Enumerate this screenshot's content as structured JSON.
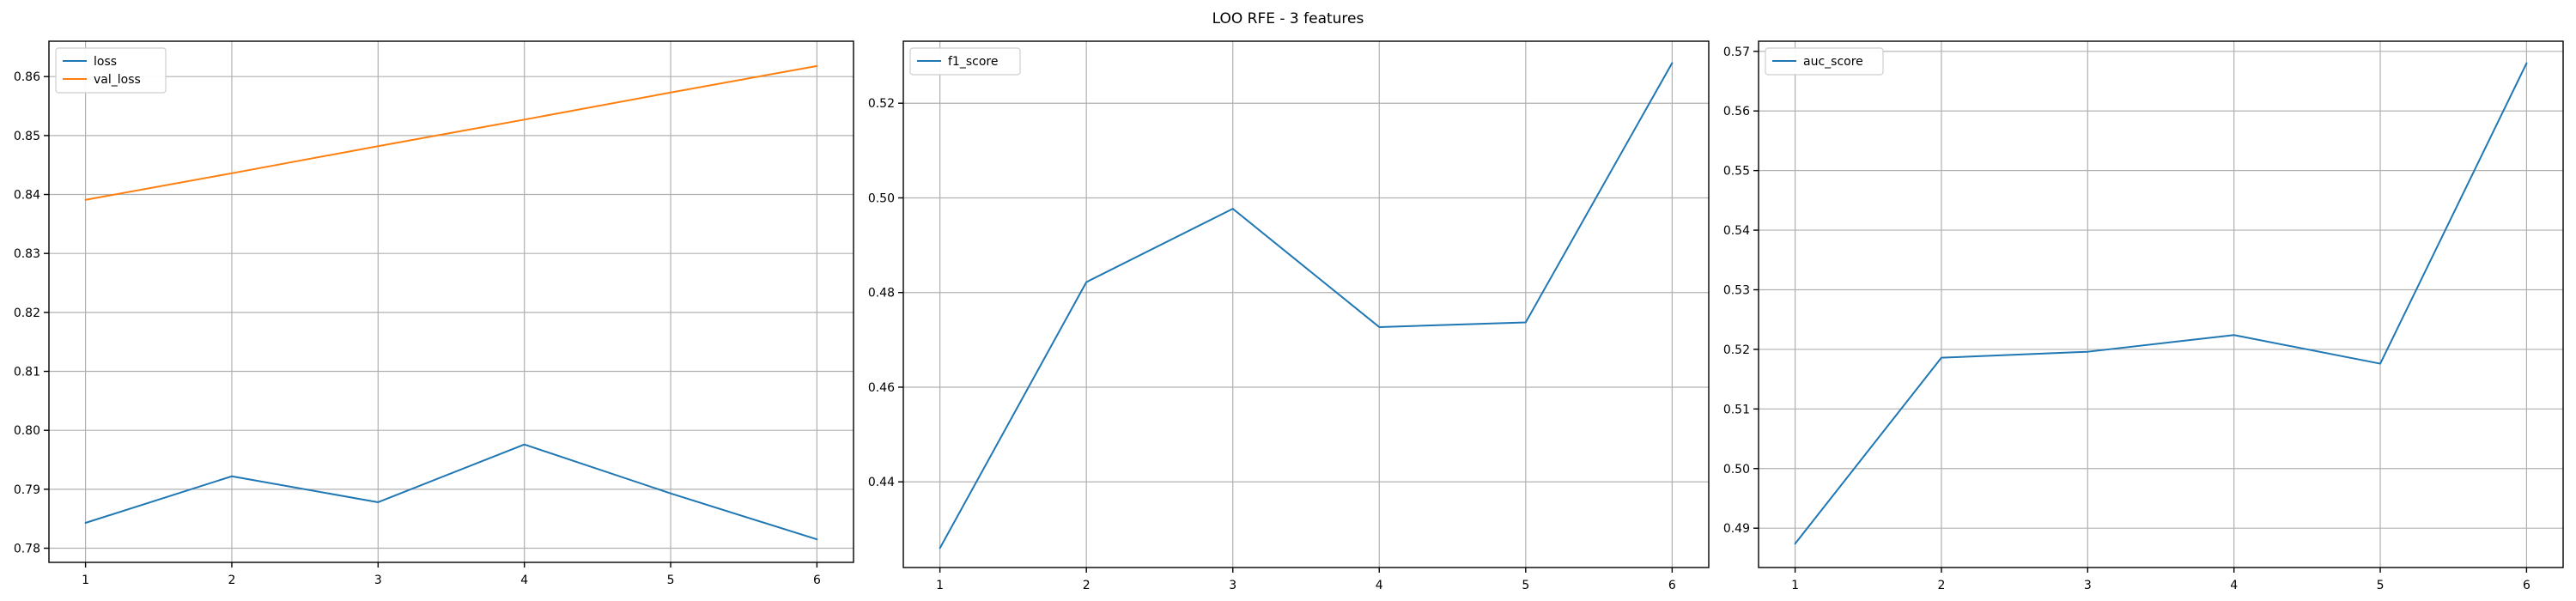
{
  "figure": {
    "title": "LOO RFE - 3 features"
  },
  "chart_data": [
    {
      "type": "line",
      "title": "",
      "xlabel": "",
      "ylabel": "",
      "x": [
        1,
        2,
        3,
        4,
        5,
        6
      ],
      "xlim": [
        0.75,
        6.25
      ],
      "ylim": [
        0.7776,
        0.866
      ],
      "xticks": [
        1,
        2,
        3,
        4,
        5,
        6
      ],
      "yticks": [
        0.78,
        0.79,
        0.8,
        0.81,
        0.82,
        0.83,
        0.84,
        0.85,
        0.86
      ],
      "ytick_decimals": 2,
      "grid": true,
      "legend": "upper left",
      "series": [
        {
          "name": "loss",
          "color": "#1f77b4",
          "values": [
            0.7843,
            0.7922,
            0.7878,
            0.7976,
            0.7893,
            0.7815
          ]
        },
        {
          "name": "val_loss",
          "color": "#ff7f0e",
          "values": [
            0.8391,
            0.8436,
            0.8482,
            0.8527,
            0.8573,
            0.8618
          ]
        }
      ]
    },
    {
      "type": "line",
      "title": "",
      "xlabel": "",
      "ylabel": "",
      "x": [
        1,
        2,
        3,
        4,
        5,
        6
      ],
      "xlim": [
        0.75,
        6.25
      ],
      "ylim": [
        0.4219,
        0.5331
      ],
      "xticks": [
        1,
        2,
        3,
        4,
        5,
        6
      ],
      "yticks": [
        0.44,
        0.46,
        0.48,
        0.5,
        0.52
      ],
      "ytick_decimals": 2,
      "grid": true,
      "legend": "upper left",
      "series": [
        {
          "name": "f1_score",
          "color": "#1f77b4",
          "values": [
            0.426,
            0.4822,
            0.4977,
            0.4727,
            0.4737,
            0.5285
          ]
        }
      ]
    },
    {
      "type": "line",
      "title": "",
      "xlabel": "",
      "ylabel": "",
      "x": [
        1,
        2,
        3,
        4,
        5,
        6
      ],
      "xlim": [
        0.75,
        6.25
      ],
      "ylim": [
        0.4834,
        0.5717
      ],
      "xticks": [
        1,
        2,
        3,
        4,
        5,
        6
      ],
      "yticks": [
        0.49,
        0.5,
        0.51,
        0.52,
        0.53,
        0.54,
        0.55,
        0.56,
        0.57
      ],
      "ytick_decimals": 2,
      "grid": true,
      "legend": "upper left",
      "series": [
        {
          "name": "auc_score",
          "color": "#1f77b4",
          "values": [
            0.4874,
            0.5186,
            0.5196,
            0.5224,
            0.5176,
            0.568
          ]
        }
      ]
    }
  ]
}
